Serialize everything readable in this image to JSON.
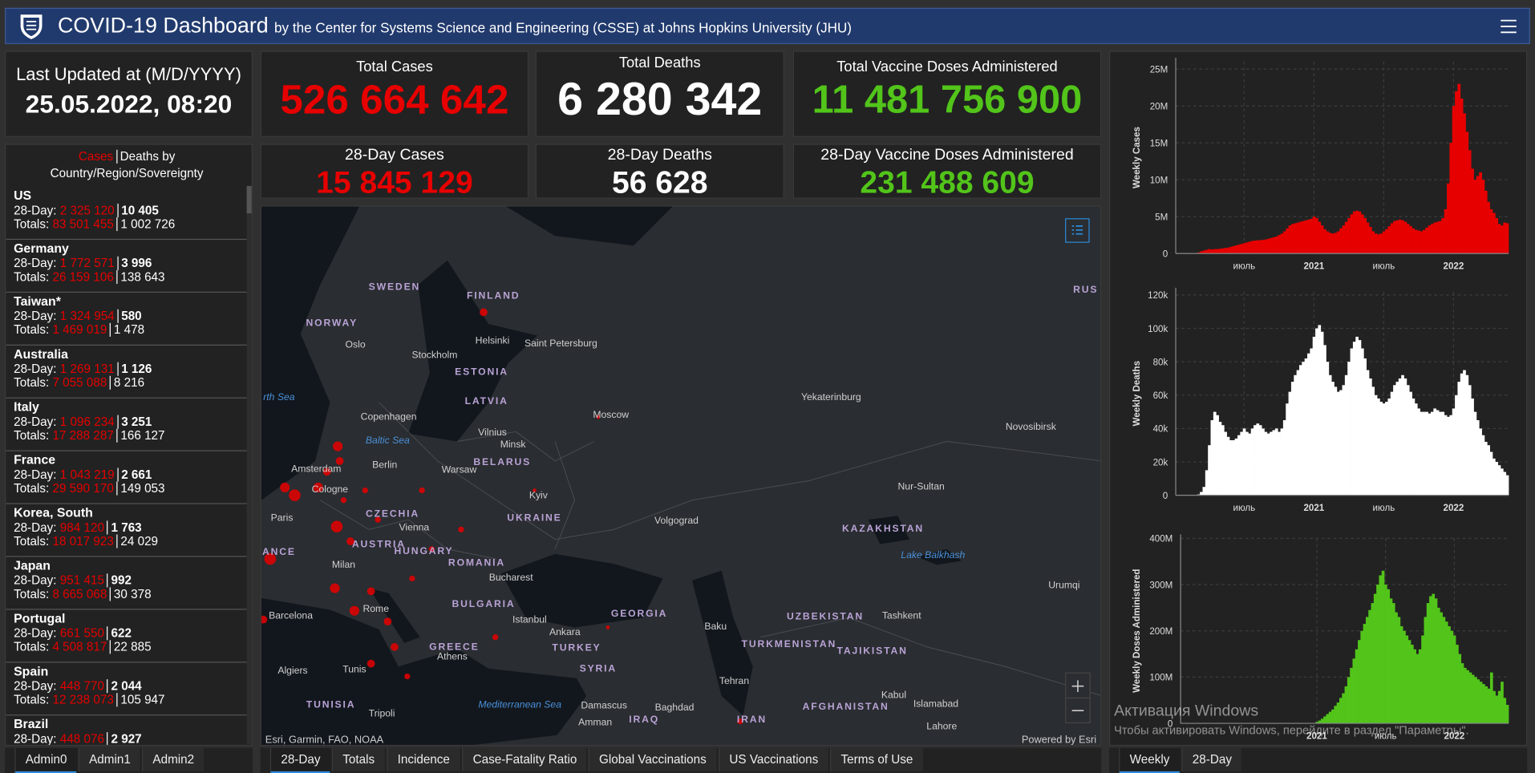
{
  "header": {
    "title": "COVID-19 Dashboard",
    "subtitle": "by the Center for Systems Science and Engineering (CSSE) at Johns Hopkins University (JHU)"
  },
  "last_updated": {
    "label": "Last Updated at (M/D/YYYY)",
    "value": "25.05.2022, 08:20"
  },
  "stats": [
    {
      "label": "Total Cases",
      "value": "526 664 642"
    },
    {
      "label": "Total Deaths",
      "value": "6 280 342"
    },
    {
      "label": "Total Vaccine Doses Administered",
      "value": "11 481 756 900"
    },
    {
      "label": "28-Day Cases",
      "value": "15 845 129"
    },
    {
      "label": "28-Day Deaths",
      "value": "56 628"
    },
    {
      "label": "28-Day Vaccine Doses Administered",
      "value": "231 488 609"
    }
  ],
  "country_list": {
    "cases_label": "Cases",
    "deaths_label": "Deaths by",
    "scope_label": "Country/Region/Sovereignty",
    "day28_label": "28-Day:",
    "totals_label": "Totals:",
    "rows": [
      {
        "name": "US",
        "day28_cases": "2 325 120",
        "day28_deaths": "10 405",
        "total_cases": "83 501 455",
        "total_deaths": "1 002 726"
      },
      {
        "name": "Germany",
        "day28_cases": "1 772 571",
        "day28_deaths": "3 996",
        "total_cases": "26 159 106",
        "total_deaths": "138 643"
      },
      {
        "name": "Taiwan*",
        "day28_cases": "1 324 954",
        "day28_deaths": "580",
        "total_cases": "1 469 019",
        "total_deaths": "1 478"
      },
      {
        "name": "Australia",
        "day28_cases": "1 269 131",
        "day28_deaths": "1 126",
        "total_cases": "7 055 088",
        "total_deaths": "8 216"
      },
      {
        "name": "Italy",
        "day28_cases": "1 096 234",
        "day28_deaths": "3 251",
        "total_cases": "17 288 287",
        "total_deaths": "166 127"
      },
      {
        "name": "France",
        "day28_cases": "1 043 219",
        "day28_deaths": "2 661",
        "total_cases": "29 590 170",
        "total_deaths": "149 053"
      },
      {
        "name": "Korea, South",
        "day28_cases": "984 120",
        "day28_deaths": "1 763",
        "total_cases": "18 017 923",
        "total_deaths": "24 029"
      },
      {
        "name": "Japan",
        "day28_cases": "951 415",
        "day28_deaths": "992",
        "total_cases": "8 665 068",
        "total_deaths": "30 378"
      },
      {
        "name": "Portugal",
        "day28_cases": "661 550",
        "day28_deaths": "622",
        "total_cases": "4 508 817",
        "total_deaths": "22 885"
      },
      {
        "name": "Spain",
        "day28_cases": "448 770",
        "day28_deaths": "2 044",
        "total_cases": "12 238 073",
        "total_deaths": "105 947"
      },
      {
        "name": "Brazil",
        "day28_cases": "448 076",
        "day28_deaths": "2 927"
      }
    ]
  },
  "map": {
    "labels": [
      "SWEDEN",
      "FINLAND",
      "NORWAY",
      "RUS",
      "Oslo",
      "Stockholm",
      "Helsinki",
      "Saint Petersburg",
      "ESTONIA",
      "LATVIA",
      "rth Sea",
      "Copenhagen",
      "Moscow",
      "Yekaterinburg",
      "Baltic Sea",
      "Vilnius",
      "Minsk",
      "BELARUS",
      "Novosibirsk",
      "Amsterdam",
      "Berlin",
      "Warsaw",
      "Cologne",
      "Kyiv",
      "Nur-Sultan",
      "CZECHIA",
      "UKRAINE",
      "Volgograd",
      "Paris",
      "Vienna",
      "KAZAKHSTAN",
      "AUSTRIA",
      "HUNGARY",
      "ANCE",
      "Lake Balkhash",
      "Milan",
      "ROMANIA",
      "Bucharest",
      "Urumqi",
      "BULGARIA",
      "Rome",
      "Barcelona",
      "Istanbul",
      "GEORGIA",
      "UZBEKISTAN",
      "Tashkent",
      "Ankara",
      "Baku",
      "GREECE",
      "TURKEY",
      "TURKMENISTAN",
      "TAJIKISTAN",
      "Athens",
      "Algiers",
      "Tunis",
      "SYRIA",
      "Tehran",
      "Kabul",
      "TUNISIA",
      "Mediterranean Sea",
      "Damascus",
      "Baghdad",
      "AFGHANISTAN",
      "Islamabad",
      "Tripoli",
      "Amman",
      "IRAQ",
      "IRAN",
      "Lahore"
    ],
    "attribution": "Esri, Garmin, FAO, NOAA",
    "powered_by": "Powered by Esri"
  },
  "chart_data": [
    {
      "type": "bar",
      "y_label": "Weekly Cases",
      "color": "#e60000",
      "grid": true,
      "categories": [
        null,
        null,
        null,
        null,
        null,
        null,
        null,
        null,
        null,
        null,
        null,
        null,
        null,
        null,
        null,
        null,
        null,
        null,
        null,
        null,
        null,
        null,
        null,
        null,
        null,
        "июль",
        null,
        null,
        null,
        null,
        null,
        null,
        null,
        null,
        null,
        null,
        null,
        null,
        null,
        null,
        null,
        null,
        null,
        null,
        null,
        null,
        null,
        null,
        null,
        null,
        null,
        "2021",
        null,
        null,
        null,
        null,
        null,
        null,
        null,
        null,
        null,
        null,
        null,
        null,
        null,
        null,
        null,
        null,
        null,
        null,
        null,
        null,
        null,
        null,
        null,
        null,
        null,
        "июль",
        null,
        null,
        null,
        null,
        null,
        null,
        null,
        null,
        null,
        null,
        null,
        null,
        null,
        null,
        null,
        null,
        null,
        null,
        null,
        null,
        null,
        null,
        null,
        null,
        null,
        "2022",
        null,
        null,
        null,
        null,
        null,
        null,
        null,
        null,
        null,
        null,
        null,
        null,
        null,
        null,
        null,
        null,
        null,
        null,
        null,
        null
      ],
      "values": [
        0,
        0,
        0,
        10000,
        20000,
        10000,
        30000,
        50000,
        150000,
        300000,
        400000,
        500000,
        600000,
        550000,
        600000,
        600000,
        650000,
        700000,
        750000,
        800000,
        900000,
        1000000,
        1100000,
        1200000,
        1300000,
        1400000,
        1500000,
        1600000,
        1700000,
        1750000,
        1800000,
        1800000,
        1850000,
        1900000,
        2000000,
        2100000,
        2200000,
        2300000,
        2500000,
        2700000,
        3000000,
        3400000,
        3800000,
        4000000,
        4100000,
        4200000,
        4300000,
        4400000,
        4500000,
        4600000,
        4700000,
        5000000,
        4800000,
        4300000,
        3800000,
        3300000,
        3000000,
        2800000,
        2700000,
        2800000,
        3000000,
        3400000,
        3800000,
        4300000,
        4800000,
        5300000,
        5700000,
        5800000,
        5700000,
        5300000,
        4800000,
        4200000,
        3600000,
        3000000,
        2700000,
        2600000,
        2700000,
        3000000,
        3300000,
        3700000,
        4100000,
        4400000,
        4500000,
        4600000,
        4500000,
        4300000,
        4000000,
        3700000,
        3400000,
        3200000,
        3100000,
        3000000,
        3200000,
        3500000,
        3800000,
        4000000,
        4200000,
        4300000,
        4400000,
        4800000,
        6000000,
        9500000,
        15000000,
        20000000,
        22000000,
        23000000,
        21000000,
        19000000,
        16500000,
        14000000,
        11500000,
        10000000,
        10500000,
        11000000,
        10000000,
        8500000,
        7000000,
        6000000,
        5500000,
        4800000,
        4000000,
        3800000,
        4200000,
        4100000
      ],
      "ylim": [
        0,
        26000000
      ],
      "yticks": [
        0,
        {
          "value": 5000000,
          "label": "5M"
        },
        {
          "value": 10000000,
          "label": "10M"
        },
        {
          "value": 15000000,
          "label": "15M"
        },
        {
          "value": 20000000,
          "label": "20M"
        },
        {
          "value": 25000000,
          "label": "25M"
        }
      ]
    },
    {
      "type": "bar",
      "y_label": "Weekly Deaths",
      "color": "#ffffff",
      "grid": true,
      "categories": [
        null,
        null,
        null,
        null,
        null,
        null,
        null,
        null,
        null,
        null,
        null,
        null,
        null,
        null,
        null,
        null,
        null,
        null,
        null,
        null,
        null,
        null,
        null,
        null,
        null,
        "июль",
        null,
        null,
        null,
        null,
        null,
        null,
        null,
        null,
        null,
        null,
        null,
        null,
        null,
        null,
        null,
        null,
        null,
        null,
        null,
        null,
        null,
        null,
        null,
        null,
        null,
        "2021",
        null,
        null,
        null,
        null,
        null,
        null,
        null,
        null,
        null,
        null,
        null,
        null,
        null,
        null,
        null,
        null,
        null,
        null,
        null,
        null,
        null,
        null,
        null,
        null,
        null,
        "июль",
        null,
        null,
        null,
        null,
        null,
        null,
        null,
        null,
        null,
        null,
        null,
        null,
        null,
        null,
        null,
        null,
        null,
        null,
        null,
        null,
        null,
        null,
        null,
        null,
        null,
        "2022",
        null,
        null,
        null,
        null,
        null,
        null,
        null,
        null,
        null,
        null,
        null,
        null,
        null,
        null,
        null,
        null,
        null,
        null,
        null,
        null
      ],
      "values": [
        0,
        0,
        0,
        0,
        0,
        0,
        0,
        100,
        500,
        2000,
        5000,
        15000,
        30000,
        45000,
        50000,
        48000,
        44000,
        42000,
        38000,
        35000,
        33000,
        33000,
        34000,
        36000,
        38000,
        40000,
        38000,
        37000,
        40000,
        42000,
        43000,
        42000,
        40000,
        38000,
        37000,
        38000,
        39000,
        40000,
        38000,
        40000,
        45000,
        55000,
        62000,
        68000,
        72000,
        75000,
        78000,
        80000,
        82000,
        85000,
        88000,
        95000,
        100000,
        102000,
        98000,
        90000,
        80000,
        72000,
        68000,
        65000,
        62000,
        63000,
        66000,
        72000,
        80000,
        88000,
        92000,
        95000,
        93000,
        88000,
        82000,
        75000,
        70000,
        65000,
        60000,
        58000,
        56000,
        55000,
        56000,
        58000,
        62000,
        66000,
        68000,
        70000,
        72000,
        70000,
        66000,
        62000,
        58000,
        55000,
        52000,
        50000,
        50000,
        50000,
        49000,
        50000,
        52000,
        51000,
        50000,
        50000,
        48000,
        47000,
        48000,
        52000,
        60000,
        68000,
        73000,
        75000,
        72000,
        66000,
        58000,
        50000,
        45000,
        40000,
        36000,
        32000,
        30000,
        26000,
        22000,
        20000,
        18000,
        16000,
        14000,
        12000
      ],
      "ylim": [
        0,
        122000
      ],
      "yticks": [
        0,
        {
          "value": 20000,
          "label": "20k"
        },
        {
          "value": 40000,
          "label": "40k"
        },
        {
          "value": 60000,
          "label": "60k"
        },
        {
          "value": 80000,
          "label": "80k"
        },
        {
          "value": 100000,
          "label": "100k"
        },
        {
          "value": 120000,
          "label": "120k"
        }
      ]
    },
    {
      "type": "bar",
      "y_label": "Weekly Doses Administered",
      "color": "#52c41a",
      "grid": true,
      "categories": [
        null,
        null,
        null,
        null,
        null,
        null,
        null,
        null,
        null,
        null,
        null,
        null,
        null,
        null,
        null,
        null,
        null,
        null,
        null,
        null,
        null,
        null,
        null,
        null,
        null,
        null,
        null,
        null,
        null,
        null,
        null,
        null,
        null,
        null,
        null,
        null,
        null,
        null,
        null,
        null,
        null,
        null,
        null,
        null,
        null,
        null,
        null,
        null,
        null,
        null,
        null,
        "2021",
        null,
        null,
        null,
        null,
        null,
        null,
        null,
        null,
        null,
        null,
        null,
        null,
        null,
        null,
        null,
        null,
        null,
        null,
        null,
        null,
        null,
        null,
        null,
        null,
        null,
        "июль",
        null,
        null,
        null,
        null,
        null,
        null,
        null,
        null,
        null,
        null,
        null,
        null,
        null,
        null,
        null,
        null,
        null,
        null,
        null,
        null,
        null,
        null,
        null,
        null,
        null,
        "2022",
        null,
        null,
        null,
        null,
        null,
        null,
        null,
        null,
        null,
        null,
        null,
        null,
        null,
        null,
        null,
        null,
        null,
        null,
        null,
        null
      ],
      "values": [
        0,
        0,
        0,
        0,
        0,
        0,
        0,
        0,
        0,
        0,
        0,
        0,
        0,
        0,
        0,
        0,
        0,
        0,
        0,
        0,
        0,
        0,
        0,
        0,
        0,
        0,
        0,
        0,
        0,
        0,
        0,
        0,
        0,
        0,
        0,
        0,
        0,
        0,
        0,
        0,
        0,
        0,
        0,
        0,
        0,
        0,
        0,
        0,
        0,
        0,
        1000000,
        3000000,
        6000000,
        10000000,
        15000000,
        20000000,
        25000000,
        30000000,
        38000000,
        45000000,
        55000000,
        65000000,
        80000000,
        100000000,
        120000000,
        140000000,
        160000000,
        180000000,
        200000000,
        215000000,
        230000000,
        245000000,
        260000000,
        280000000,
        300000000,
        320000000,
        330000000,
        300000000,
        290000000,
        270000000,
        260000000,
        240000000,
        230000000,
        210000000,
        200000000,
        190000000,
        180000000,
        170000000,
        160000000,
        150000000,
        160000000,
        190000000,
        230000000,
        260000000,
        275000000,
        280000000,
        270000000,
        250000000,
        240000000,
        230000000,
        220000000,
        210000000,
        200000000,
        190000000,
        170000000,
        150000000,
        130000000,
        120000000,
        115000000,
        110000000,
        105000000,
        100000000,
        95000000,
        90000000,
        85000000,
        80000000,
        75000000,
        110000000,
        70000000,
        60000000,
        70000000,
        90000000,
        55000000,
        40000000
      ],
      "ylim": [
        0,
        400000000
      ],
      "yticks": [
        0,
        {
          "value": 100000000,
          "label": "100M"
        },
        {
          "value": 200000000,
          "label": "200M"
        },
        {
          "value": 300000000,
          "label": "300M"
        },
        {
          "value": 400000000,
          "label": "400M"
        }
      ]
    }
  ],
  "tabs": {
    "left": [
      "Admin0",
      "Admin1",
      "Admin2"
    ],
    "center": [
      "28-Day",
      "Totals",
      "Incidence",
      "Case-Fatality Ratio",
      "Global Vaccinations",
      "US Vaccinations",
      "Terms of Use"
    ],
    "right": [
      "Weekly",
      "28-Day"
    ]
  },
  "watermark": {
    "title": "Активация Windows",
    "text": "Чтобы активировать Windows, перейдите в раздел \"Параметры\"."
  }
}
